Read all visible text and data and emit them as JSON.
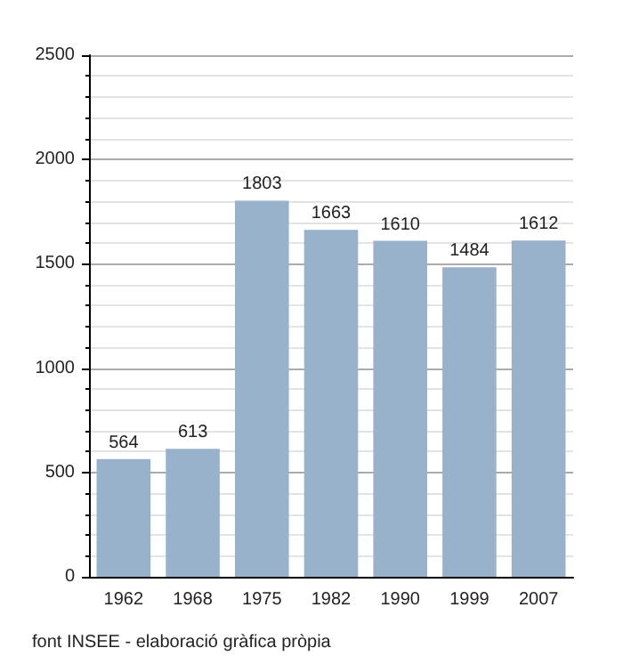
{
  "chart_data": {
    "type": "bar",
    "categories": [
      "1962",
      "1968",
      "1975",
      "1982",
      "1990",
      "1999",
      "2007"
    ],
    "values": [
      564,
      613,
      1803,
      1663,
      1610,
      1484,
      1612
    ],
    "color": "#98b2cb",
    "ylim": [
      0,
      2500
    ],
    "yticks": [
      0,
      500,
      1000,
      1500,
      2000,
      2500
    ],
    "grid": "y",
    "data_labels": true,
    "annotations": [
      "font INSEE - elaboració gràfica pròpia"
    ]
  }
}
